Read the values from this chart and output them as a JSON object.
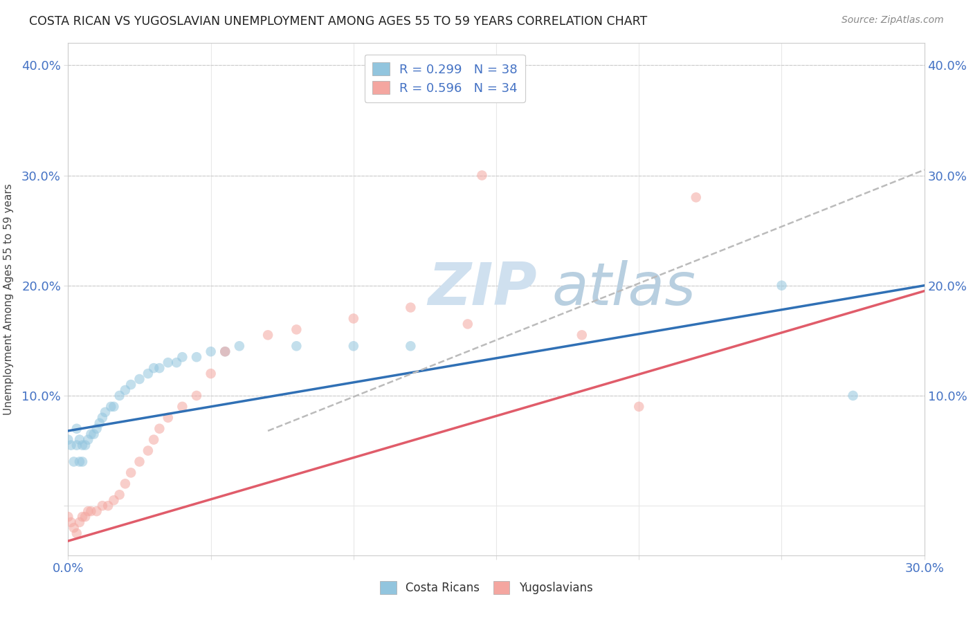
{
  "title": "COSTA RICAN VS YUGOSLAVIAN UNEMPLOYMENT AMONG AGES 55 TO 59 YEARS CORRELATION CHART",
  "source": "Source: ZipAtlas.com",
  "ylabel": "Unemployment Among Ages 55 to 59 years",
  "xlim": [
    0.0,
    0.3
  ],
  "ylim": [
    -0.045,
    0.42
  ],
  "xtick_positions": [
    0.0,
    0.05,
    0.1,
    0.15,
    0.2,
    0.25,
    0.3
  ],
  "ytick_positions": [
    0.0,
    0.1,
    0.2,
    0.3,
    0.4
  ],
  "costa_rican_R": 0.299,
  "costa_rican_N": 38,
  "yugoslavian_R": 0.596,
  "yugoslavian_N": 34,
  "costa_rican_color": "#92c5de",
  "yugoslavian_color": "#f4a6a0",
  "costa_rican_line_color": "#3070b5",
  "yugoslavian_line_color": "#e05c6a",
  "gray_dashed_color": "#bbbbbb",
  "background_color": "#ffffff",
  "watermark_zip_color": "#d0e4f0",
  "watermark_atlas_color": "#c8d8e8",
  "cr_trend": [
    0.0,
    0.068,
    0.3,
    0.2
  ],
  "yu_trend": [
    0.0,
    -0.032,
    0.3,
    0.195
  ],
  "gray_dashed": [
    0.07,
    0.068,
    0.3,
    0.305
  ],
  "cr_points_x": [
    0.0,
    0.001,
    0.002,
    0.003,
    0.003,
    0.004,
    0.004,
    0.005,
    0.005,
    0.006,
    0.007,
    0.008,
    0.009,
    0.01,
    0.011,
    0.012,
    0.013,
    0.015,
    0.016,
    0.018,
    0.02,
    0.022,
    0.025,
    0.028,
    0.03,
    0.032,
    0.035,
    0.038,
    0.04,
    0.045,
    0.05,
    0.055,
    0.06,
    0.08,
    0.1,
    0.12,
    0.25,
    0.275
  ],
  "cr_points_y": [
    0.06,
    0.055,
    0.04,
    0.055,
    0.07,
    0.04,
    0.06,
    0.04,
    0.055,
    0.055,
    0.06,
    0.065,
    0.065,
    0.07,
    0.075,
    0.08,
    0.085,
    0.09,
    0.09,
    0.1,
    0.105,
    0.11,
    0.115,
    0.12,
    0.125,
    0.125,
    0.13,
    0.13,
    0.135,
    0.135,
    0.14,
    0.14,
    0.145,
    0.145,
    0.145,
    0.145,
    0.2,
    0.1
  ],
  "yu_points_x": [
    0.0,
    0.001,
    0.002,
    0.003,
    0.004,
    0.005,
    0.006,
    0.007,
    0.008,
    0.01,
    0.012,
    0.014,
    0.016,
    0.018,
    0.02,
    0.022,
    0.025,
    0.028,
    0.03,
    0.032,
    0.035,
    0.04,
    0.045,
    0.05,
    0.055,
    0.07,
    0.08,
    0.1,
    0.12,
    0.14,
    0.145,
    0.18,
    0.2,
    0.22
  ],
  "yu_points_y": [
    -0.01,
    -0.015,
    -0.02,
    -0.025,
    -0.015,
    -0.01,
    -0.01,
    -0.005,
    -0.005,
    -0.005,
    0.0,
    0.0,
    0.005,
    0.01,
    0.02,
    0.03,
    0.04,
    0.05,
    0.06,
    0.07,
    0.08,
    0.09,
    0.1,
    0.12,
    0.14,
    0.155,
    0.16,
    0.17,
    0.18,
    0.165,
    0.3,
    0.155,
    0.09,
    0.28
  ]
}
